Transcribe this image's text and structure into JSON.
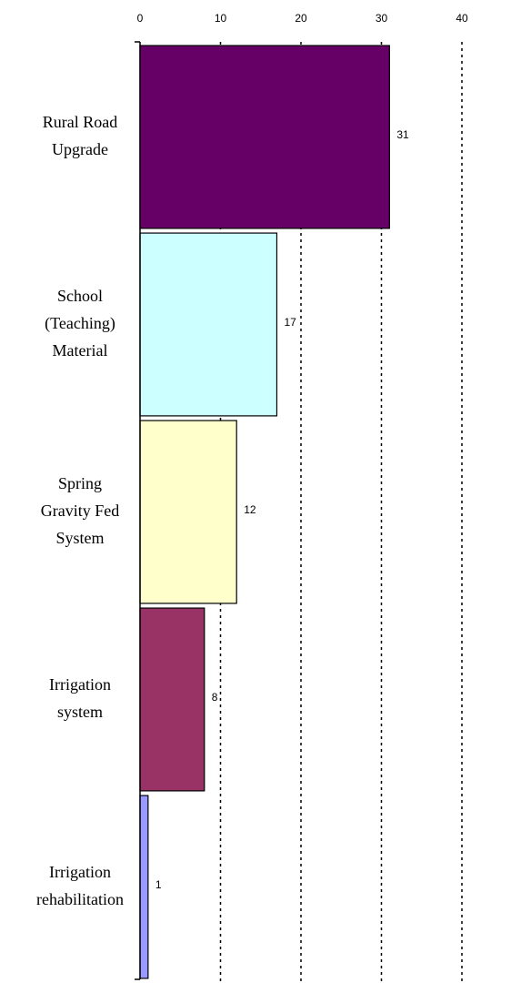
{
  "chart_data": {
    "type": "barh",
    "categories": [
      "Rural Road\nUpgrade",
      "School\n(Teaching)\nMaterial",
      "Spring\nGravity Fed\nSystem",
      "Irrigation\nsystem",
      "Irrigation\nrehabilitation"
    ],
    "values": [
      31,
      17,
      12,
      8,
      1
    ],
    "colors": [
      "#660066",
      "#ccffff",
      "#ffffcc",
      "#993366",
      "#9999ff"
    ],
    "xlim": [
      0,
      40
    ],
    "xticks": [
      0,
      10,
      20,
      30,
      40
    ],
    "grid": true
  }
}
